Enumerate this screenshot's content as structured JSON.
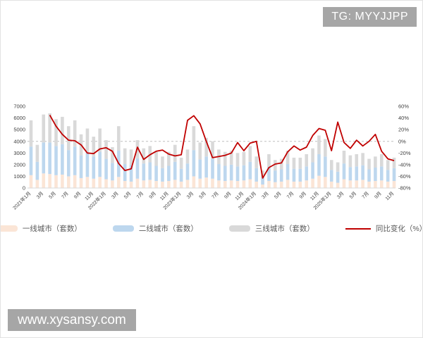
{
  "badges": {
    "telegram_label": "TG: MYYJJPP",
    "website_label": "www.xysansy.com",
    "badge_bg": "#a6a6a6",
    "badge_text_color": "#ffffff"
  },
  "chart_data": {
    "type": "bar",
    "subtype": "stacked-bars-with-right-axis-line",
    "n_months": 59,
    "x_tick_labels": [
      "2021年1月",
      "3月",
      "5月",
      "7月",
      "9月",
      "11月",
      "2022年1月",
      "3月",
      "5月",
      "7月",
      "9月",
      "11月",
      "2023年1月",
      "3月",
      "5月",
      "7月",
      "9月",
      "11月",
      "2024年1月",
      "3月",
      "5月",
      "7月",
      "9月",
      "11月",
      "2025年1月",
      "3月",
      "5月",
      "7月",
      "9月",
      "11月"
    ],
    "series": [
      {
        "name": "一线城市（套数）",
        "type": "stacked-bar",
        "color": "#fbe5d6",
        "values": [
          1100,
          700,
          1250,
          1200,
          1100,
          1150,
          1000,
          1100,
          850,
          950,
          800,
          950,
          750,
          650,
          950,
          600,
          550,
          800,
          650,
          700,
          600,
          550,
          600,
          700,
          550,
          700,
          1000,
          800,
          900,
          800,
          650,
          600,
          650,
          600,
          650,
          750,
          550,
          300,
          600,
          500,
          550,
          700,
          550,
          550,
          650,
          800,
          1050,
          950,
          550,
          450,
          750,
          650,
          650,
          700,
          550,
          600,
          650,
          550,
          600
        ]
      },
      {
        "name": "二线城市（套数）",
        "type": "stacked-bar",
        "color": "#bdd7ee",
        "values": [
          2450,
          1550,
          2650,
          2700,
          2500,
          2600,
          2250,
          2450,
          1950,
          2150,
          1900,
          2150,
          1750,
          1500,
          2250,
          1450,
          1450,
          1750,
          1450,
          1500,
          1300,
          1150,
          1300,
          1550,
          1100,
          1400,
          2250,
          1650,
          1800,
          1700,
          1400,
          1300,
          1350,
          1250,
          1300,
          1500,
          1150,
          650,
          1200,
          1000,
          1050,
          1350,
          1100,
          1100,
          1200,
          1400,
          1850,
          1750,
          1000,
          950,
          1350,
          1150,
          1200,
          1250,
          1050,
          1150,
          1200,
          1000,
          1100
        ]
      },
      {
        "name": "三线城市（套数）",
        "type": "stacked-bar",
        "color": "#d9d9d9",
        "values": [
          2250,
          1450,
          2400,
          2500,
          2300,
          2350,
          2050,
          2250,
          1800,
          2000,
          1700,
          2000,
          1600,
          1350,
          2100,
          1350,
          1300,
          1550,
          1300,
          1400,
          1200,
          1000,
          1200,
          1450,
          950,
          1200,
          2050,
          1450,
          1600,
          1500,
          1250,
          1200,
          1200,
          1150,
          1150,
          1350,
          1000,
          550,
          1100,
          900,
          900,
          1150,
          950,
          950,
          1050,
          1200,
          1600,
          1500,
          850,
          800,
          1100,
          1000,
          1050,
          1050,
          900,
          950,
          1050,
          850,
          900
        ]
      },
      {
        "name": "同比变化（%）",
        "type": "line",
        "axis": "right",
        "color": "#c00000",
        "values": [
          null,
          null,
          null,
          45,
          26,
          12,
          2,
          1,
          -6,
          -20,
          -21,
          -13,
          -11,
          -17,
          -38,
          -50,
          -47,
          -10,
          -31,
          -23,
          -17,
          -15,
          -22,
          -25,
          -23,
          36,
          44,
          30,
          0,
          -28,
          -26,
          -24,
          -20,
          -2,
          -16,
          -3,
          0,
          -63,
          -45,
          -39,
          -37,
          -18,
          -8,
          -15,
          -10,
          10,
          22,
          19,
          -16,
          33,
          -2,
          -12,
          2,
          -8,
          0,
          12,
          -17,
          -30,
          -33
        ]
      }
    ],
    "left_axis": {
      "min": 0,
      "max": 7000,
      "step": 1000,
      "labels": [
        "0",
        "1000",
        "2000",
        "3000",
        "4000",
        "5000",
        "6000",
        "7000"
      ]
    },
    "right_axis": {
      "min": -80,
      "max": 60,
      "step": 20,
      "suffix": "%",
      "labels": [
        "-80%",
        "-60%",
        "-40%",
        "-20%",
        "0%",
        "20%",
        "40%",
        "60%"
      ]
    },
    "gridline": {
      "right_value": 0,
      "style": "dashed",
      "color": "#bfbfbf"
    },
    "legend_position": "bottom"
  }
}
